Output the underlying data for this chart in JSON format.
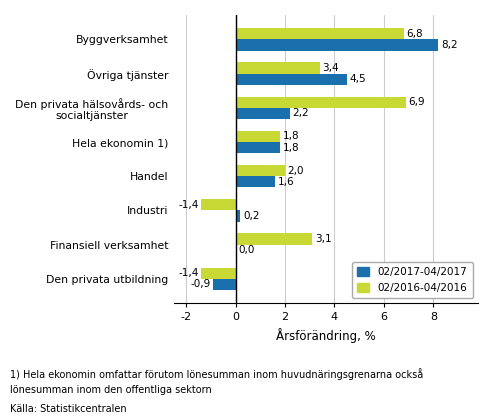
{
  "categories": [
    "Byggverksamhet",
    "Övriga tjänster",
    "Den privata hälsovårds- och\nsocialtjänster",
    "Hela ekonomin 1)",
    "Handel",
    "Industri",
    "Finansiell verksamhet",
    "Den privata utbildning"
  ],
  "series1_values": [
    8.2,
    4.5,
    2.2,
    1.8,
    1.6,
    0.2,
    0.0,
    -0.9
  ],
  "series2_values": [
    6.8,
    3.4,
    6.9,
    1.8,
    2.0,
    -1.4,
    3.1,
    -1.4
  ],
  "series1_color": "#1A6FAD",
  "series2_color": "#C8D935",
  "series1_label": "02/2017-04/2017",
  "series2_label": "02/2016-04/2016",
  "xlabel": "Årsförändring, %",
  "xlim": [
    -2.5,
    9.8
  ],
  "xticks": [
    -2,
    0,
    2,
    4,
    6,
    8
  ],
  "footnote1": "1) Hela ekonomin omfattar förutom lönesumman inom huvudnäringsgrenarna också",
  "footnote2": "lönesumman inom den offentliga sektorn",
  "footnote3": "Källa: Statistikcentralen",
  "bar_height": 0.33,
  "background_color": "#ffffff",
  "grid_color": "#cccccc"
}
